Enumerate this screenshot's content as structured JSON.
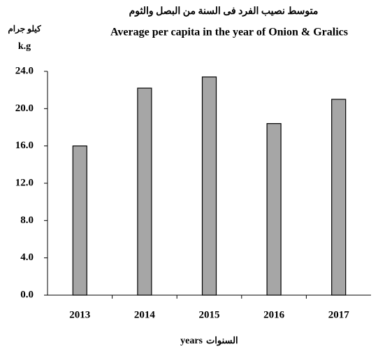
{
  "chart_data": {
    "type": "bar",
    "title_ar": "متوسط نصيب الفرد فى السنة من البصل والثوم",
    "title": "Average per capita in the year of Onion & Gralics",
    "y_label_ar": "كيلو جرام",
    "y_label": "k.g",
    "x_label_ar": "السنوات",
    "x_label": "years",
    "categories": [
      "2013",
      "2014",
      "2015",
      "2016",
      "2017"
    ],
    "values": [
      16.0,
      22.2,
      23.4,
      18.4,
      21.0
    ],
    "color": "#a6a6a6",
    "ylim": [
      0,
      24
    ],
    "yticks": [
      {
        "value": 0,
        "label": "0.0"
      },
      {
        "value": 4,
        "label": "4.0"
      },
      {
        "value": 8,
        "label": "8.0"
      },
      {
        "value": 12,
        "label": "12.0"
      },
      {
        "value": 16,
        "label": "16.0"
      },
      {
        "value": 20,
        "label": "20.0"
      },
      {
        "value": 24,
        "label": "24.0"
      }
    ],
    "grid": false
  }
}
